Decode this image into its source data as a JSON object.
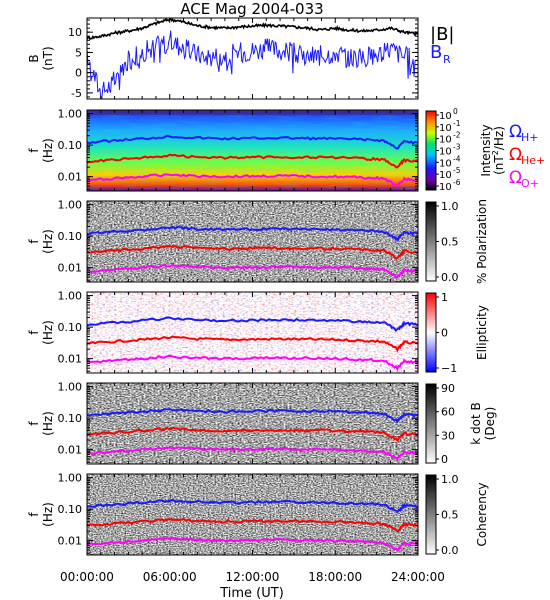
{
  "chart_data": {
    "type": "line",
    "title": "ACE Mag 2004-033",
    "xlabel": "Time (UT)",
    "x_ticks": [
      "00:00:00",
      "06:00:00",
      "12:00:00",
      "18:00:00",
      "24:00:00"
    ],
    "panels": [
      {
        "id": "b",
        "type": "line",
        "ylabel_main": "B",
        "ylabel_unit": "(nT)",
        "y_ticks": [
          "10",
          "5",
          "0",
          "-5"
        ],
        "ylim": [
          -6.5,
          13.5
        ],
        "legend": [
          {
            "label": "|B|",
            "color": "#000000"
          },
          {
            "label": "B",
            "sub": "R",
            "color": "#1a1aff"
          }
        ],
        "series": [
          {
            "name": "|B|",
            "color": "#000000",
            "x_hours": [
              0,
              1,
              2,
              3,
              4,
              5,
              6,
              7,
              8,
              9,
              10,
              11,
              12,
              13,
              14,
              15,
              16,
              17,
              18,
              19,
              20,
              21,
              22,
              23,
              24
            ],
            "values": [
              8.5,
              9.0,
              9.8,
              10.3,
              11.0,
              12.2,
              13.2,
              12.5,
              11.6,
              11.2,
              11.0,
              11.3,
              11.5,
              11.7,
              11.5,
              11.3,
              11.0,
              10.6,
              11.0,
              10.5,
              10.3,
              10.5,
              11.0,
              10.0,
              9.5
            ]
          },
          {
            "name": "B_R",
            "color": "#1a1aff",
            "x_hours": [
              0,
              1,
              2,
              3,
              4,
              5,
              6,
              7,
              8,
              9,
              10,
              11,
              12,
              13,
              14,
              15,
              16,
              17,
              18,
              19,
              20,
              21,
              22,
              23,
              24
            ],
            "values": [
              4.0,
              -5.0,
              -2.0,
              3.0,
              5.0,
              6.5,
              8.0,
              6.0,
              4.5,
              4.0,
              4.5,
              5.0,
              5.5,
              6.0,
              5.5,
              5.0,
              4.0,
              4.5,
              5.0,
              4.0,
              3.5,
              4.5,
              6.0,
              4.0,
              3.0
            ]
          }
        ]
      },
      {
        "id": "intensity",
        "type": "heatmap",
        "ylabel_main": "f",
        "ylabel_unit": "(Hz)",
        "y_ticks": [
          "1.00",
          "0.10",
          "0.01"
        ],
        "colorbar": "rainbow",
        "colorbar_ticks": [
          {
            "base": "10",
            "exp": "0"
          },
          {
            "base": "10",
            "exp": "-1"
          },
          {
            "base": "10",
            "exp": "-2"
          },
          {
            "base": "10",
            "exp": "-3"
          },
          {
            "base": "10",
            "exp": "-4"
          },
          {
            "base": "10",
            "exp": "-5"
          },
          {
            "base": "10",
            "exp": "-6"
          }
        ],
        "colorbar_label": "Intensity",
        "colorbar_unit_pre": "(nT",
        "colorbar_unit_exp": "2",
        "colorbar_unit_post": "/Hz)",
        "side_legend": [
          {
            "sym": "Ω",
            "sub": "H+",
            "color": "#1a1aff"
          },
          {
            "sym": "Ω",
            "sub": "He+",
            "color": "#ff0000"
          },
          {
            "sym": "Ω",
            "sub": "O+",
            "color": "#ff00ff"
          }
        ]
      },
      {
        "id": "polarization",
        "type": "heatmap",
        "ylabel_main": "f",
        "ylabel_unit": "(Hz)",
        "y_ticks": [
          "1.00",
          "0.10",
          "0.01"
        ],
        "colorbar": "gray",
        "colorbar_ticks": [
          "1.0",
          "0.5",
          "0.0"
        ],
        "colorbar_label": "% Polarization"
      },
      {
        "id": "ellipticity",
        "type": "heatmap",
        "ylabel_main": "f",
        "ylabel_unit": "(Hz)",
        "y_ticks": [
          "1.00",
          "0.10",
          "0.01"
        ],
        "colorbar": "bwr",
        "colorbar_ticks": [
          "1",
          "0",
          "−1"
        ],
        "colorbar_label": "Ellipticity"
      },
      {
        "id": "kdotb",
        "type": "heatmap",
        "ylabel_main": "f",
        "ylabel_unit": "(Hz)",
        "y_ticks": [
          "1.00",
          "0.10",
          "0.01"
        ],
        "colorbar": "gray",
        "colorbar_ticks": [
          "90",
          "60",
          "30",
          "0"
        ],
        "colorbar_label": "k dot B",
        "colorbar_unit": "(Deg)"
      },
      {
        "id": "coherency",
        "type": "heatmap",
        "ylabel_main": "f",
        "ylabel_unit": "(Hz)",
        "y_ticks": [
          "1.00",
          "0.10",
          "0.01"
        ],
        "colorbar": "gray",
        "colorbar_ticks": [
          "1.0",
          "0.5",
          "0.0"
        ],
        "colorbar_label": "Coherency"
      }
    ],
    "gyrofrequency_lines": [
      {
        "name": "Ω H+",
        "color": "#1a1aff",
        "x_hours": [
          0,
          2,
          4,
          6,
          8,
          10,
          12,
          14,
          16,
          18,
          20,
          21.5,
          22.5,
          23,
          24
        ],
        "values_hz": [
          0.12,
          0.14,
          0.16,
          0.19,
          0.17,
          0.16,
          0.165,
          0.17,
          0.165,
          0.16,
          0.15,
          0.14,
          0.08,
          0.13,
          0.12
        ]
      },
      {
        "name": "Ω He+",
        "color": "#ff0000",
        "x_hours": [
          0,
          2,
          4,
          6,
          8,
          10,
          12,
          14,
          16,
          18,
          20,
          21.5,
          22.5,
          23,
          24
        ],
        "values_hz": [
          0.03,
          0.035,
          0.04,
          0.047,
          0.042,
          0.04,
          0.041,
          0.042,
          0.041,
          0.04,
          0.037,
          0.035,
          0.02,
          0.033,
          0.03
        ]
      },
      {
        "name": "Ω O+",
        "color": "#ff00ff",
        "x_hours": [
          0,
          2,
          4,
          6,
          8,
          10,
          12,
          14,
          16,
          18,
          20,
          21.5,
          22.5,
          23,
          24
        ],
        "values_hz": [
          0.0075,
          0.0088,
          0.01,
          0.0118,
          0.0105,
          0.01,
          0.0103,
          0.0105,
          0.0103,
          0.01,
          0.0093,
          0.0088,
          0.005,
          0.0083,
          0.0075
        ]
      }
    ]
  }
}
